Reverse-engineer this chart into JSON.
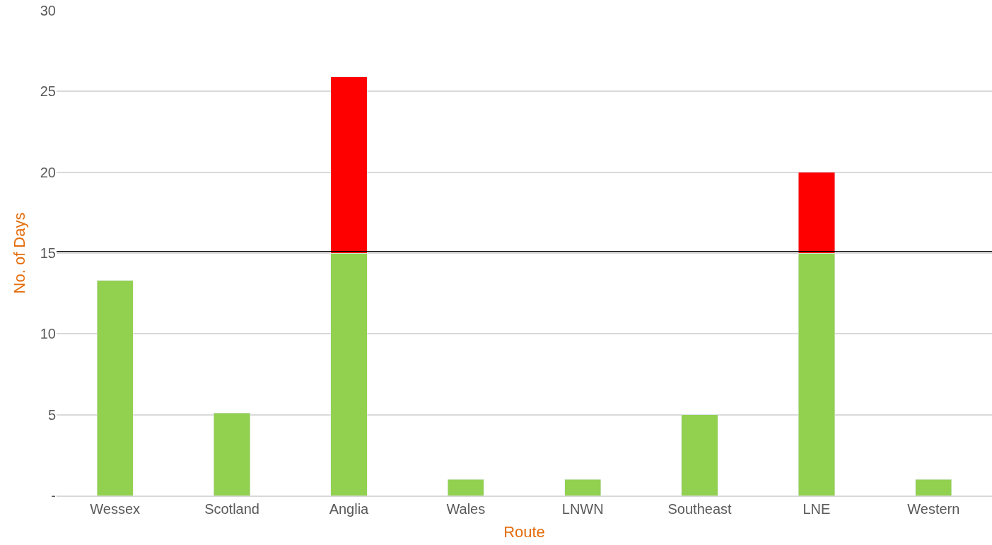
{
  "chart_data": {
    "type": "bar",
    "stacked": true,
    "xlabel": "Route",
    "ylabel": "No. of Days",
    "categories": [
      "Wessex",
      "Scotland",
      "Anglia",
      "Wales",
      "LNWN",
      "Southeast",
      "LNE",
      "Western"
    ],
    "series": [
      {
        "color": "#92d050",
        "values": [
          13.3,
          5.1,
          15,
          1,
          1,
          5,
          15,
          1
        ]
      },
      {
        "color": "#ff0000",
        "values": [
          null,
          null,
          10.9,
          null,
          null,
          null,
          5,
          null
        ]
      }
    ],
    "ylim": [
      0,
      30
    ],
    "yticks": [
      {
        "value": 0,
        "label": "-"
      },
      5,
      10,
      15,
      20,
      25,
      30
    ],
    "grid": "y",
    "ref_lines": [
      {
        "axis": "y",
        "value": 15.1,
        "color": "#000000"
      }
    ]
  }
}
